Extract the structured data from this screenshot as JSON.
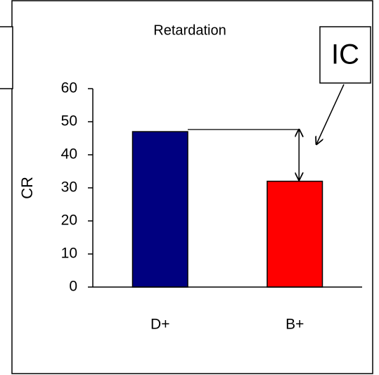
{
  "chart_data": {
    "type": "bar",
    "title": "Retardation",
    "y_label": "CR",
    "categories": [
      "D+",
      "B+"
    ],
    "values": [
      47,
      32
    ],
    "colors": [
      "#000080",
      "#ff0000"
    ],
    "ylim": [
      0,
      60
    ],
    "yticks": [
      0,
      10,
      20,
      30,
      40,
      50,
      60
    ],
    "grid": false,
    "annotation": "IC"
  }
}
